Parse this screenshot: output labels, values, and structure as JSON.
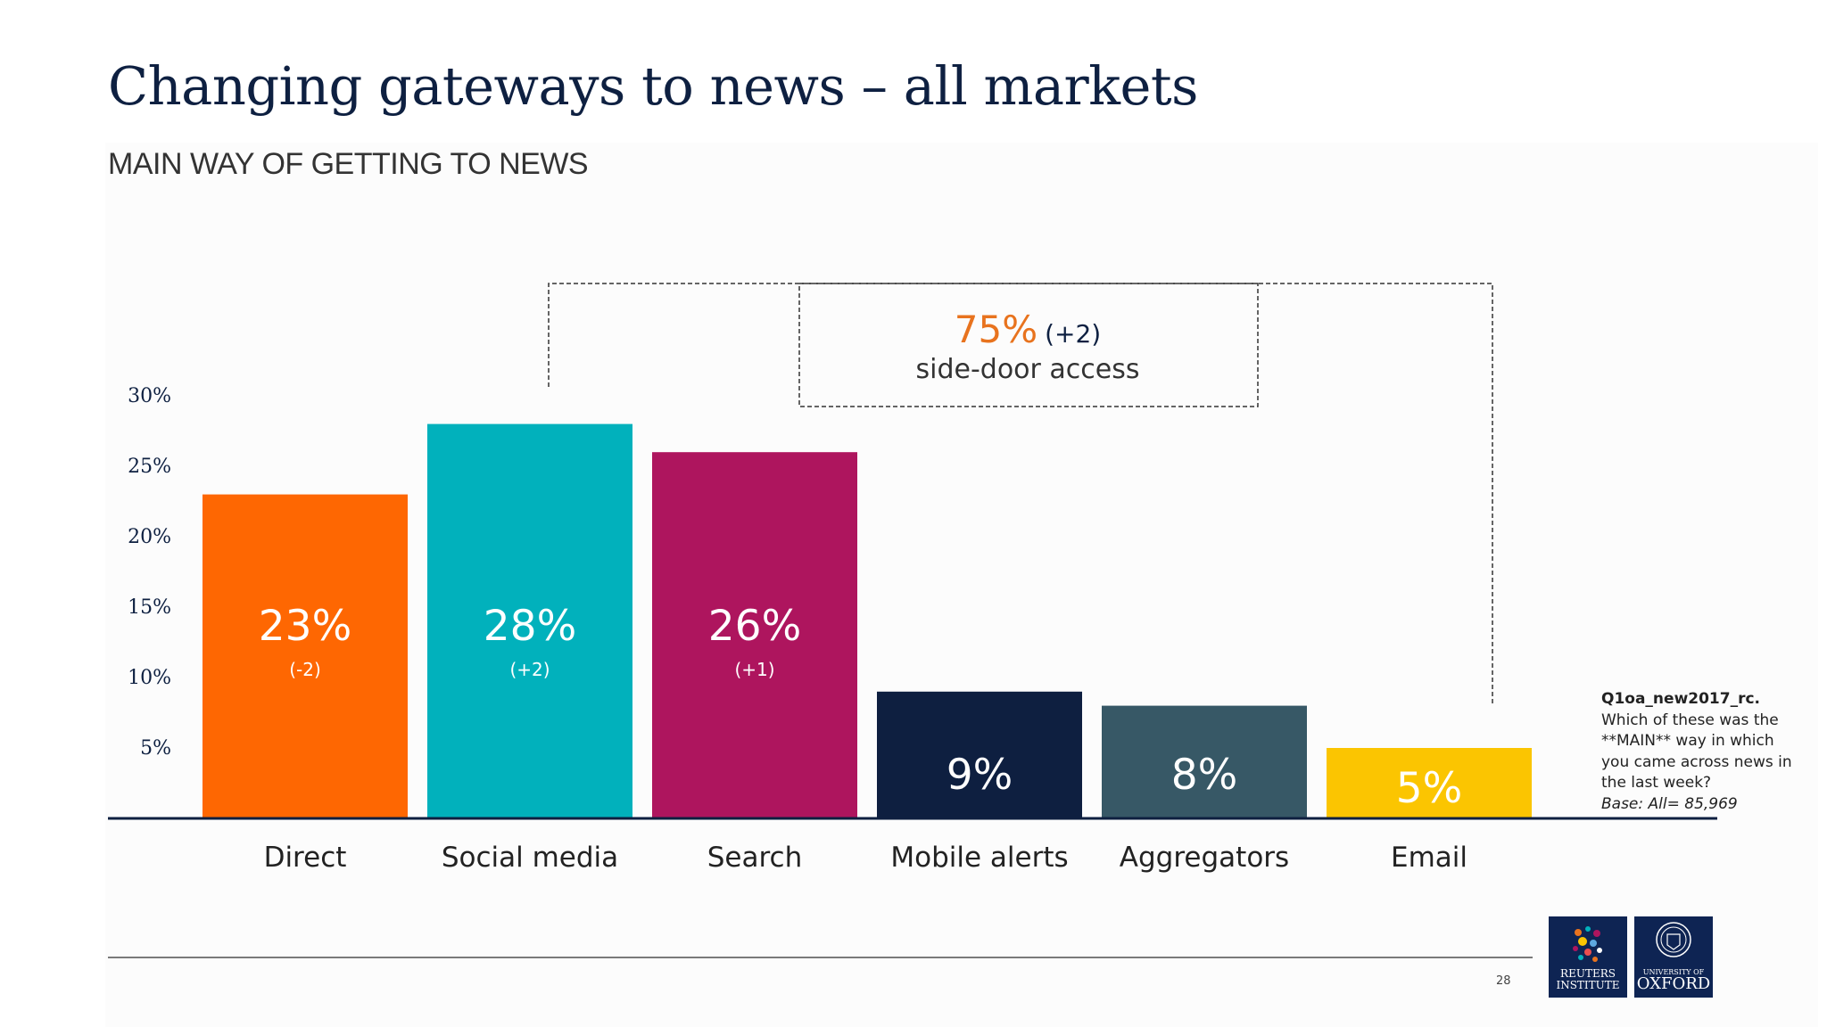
{
  "header": {
    "title": "Changing gateways to news – all markets",
    "subtitle": "MAIN WAY OF GETTING TO NEWS"
  },
  "chart_data": {
    "type": "bar",
    "categories": [
      "Direct",
      "Social media",
      "Search",
      "Mobile alerts",
      "Aggregators",
      "Email"
    ],
    "values": [
      23,
      28,
      26,
      9,
      8,
      5
    ],
    "value_labels": [
      "23%",
      "28%",
      "26%",
      "9%",
      "8%",
      "5%"
    ],
    "change_labels": [
      "(-2)",
      "(+2)",
      "(+1)",
      "",
      "",
      ""
    ],
    "colors": [
      "#fe6702",
      "#01b1bc",
      "#ae155e",
      "#0e1f40",
      "#375866",
      "#fbc501"
    ],
    "y_ticks": [
      5,
      10,
      15,
      20,
      25,
      30
    ],
    "y_tick_labels": [
      "5%",
      "10%",
      "15%",
      "20%",
      "25%",
      "30%"
    ],
    "ylim": [
      0,
      30
    ],
    "grid": false,
    "annotation": {
      "value": "75%",
      "change": "(+2)",
      "label": "side-door access",
      "value_color": "#e8731e",
      "spans_categories": [
        "Social media",
        "Search",
        "Mobile alerts",
        "Aggregators",
        "Email"
      ]
    }
  },
  "footnote": {
    "code": "Q1oa_new2017_rc.",
    "text": "Which of these was the **MAIN** way in which you came across news in the last week?",
    "base": "Base:  All= 85,969"
  },
  "page_number": "28",
  "logos": {
    "reuters": {
      "line1": "REUTERS",
      "line2": "INSTITUTE"
    },
    "oxford": {
      "line1": "UNIVERSITY OF",
      "line2": "OXFORD"
    }
  }
}
